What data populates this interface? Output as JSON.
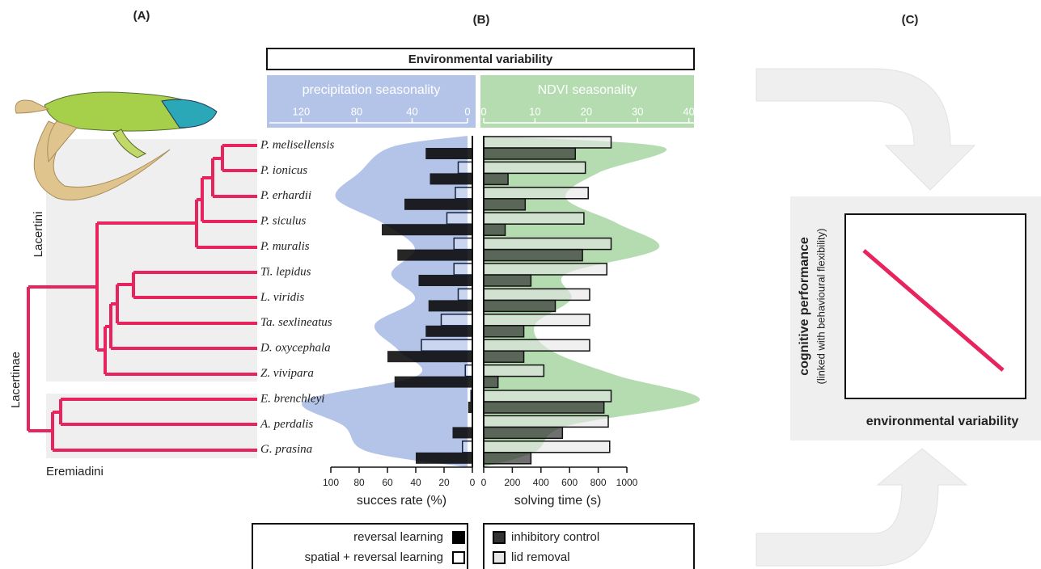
{
  "panel_labels": [
    "(A)",
    "(B)",
    "(C)"
  ],
  "header": "Environmental variability",
  "clades": [
    "Lacertini",
    "Lacertinae",
    "Eremiadini"
  ],
  "chart_data": [
    {
      "type": "bar",
      "categories": [
        "P. melisellensis",
        "P. ionicus",
        "P. erhardii",
        "P. siculus",
        "P. muralis",
        "Ti. lepidus",
        "L. viridis",
        "Ta. sexlineatus",
        "D. oxycephala",
        "Z. vivipara",
        "E. brenchleyi",
        "A. perdalis",
        "G. prasina"
      ],
      "xlabel": "succes rate (%)",
      "xlim": [
        100,
        0
      ],
      "xticks": [
        100,
        80,
        60,
        40,
        20,
        0
      ],
      "series": [
        {
          "name": "reversal learning",
          "color": "#000000",
          "values": [
            33,
            30,
            48,
            64,
            53,
            38,
            31,
            33,
            60,
            55,
            3,
            14,
            40
          ]
        },
        {
          "name": "spatial + reversal learning",
          "color": "#ffffff",
          "values": [
            null,
            10,
            12,
            18,
            13,
            13,
            10,
            22,
            36,
            5,
            1,
            null,
            7
          ]
        }
      ],
      "environment": {
        "name": "precipitation seasonality",
        "color": "#b3c4e8",
        "xlim": [
          143,
          0
        ],
        "xticks": [
          120,
          80,
          40,
          0
        ],
        "values": [
          55,
          78,
          95,
          61,
          38,
          55,
          38,
          67,
          50,
          36,
          118,
          89,
          72
        ]
      }
    },
    {
      "type": "bar",
      "xlabel": "solving time (s)",
      "xlim": [
        0,
        1000
      ],
      "xticks": [
        0,
        200,
        400,
        600,
        800,
        1000
      ],
      "series": [
        {
          "name": "inhibitory control",
          "color": "#333333",
          "values": [
            640,
            170,
            290,
            150,
            690,
            330,
            500,
            280,
            280,
            100,
            840,
            550,
            330
          ]
        },
        {
          "name": "lid removal",
          "color": "#e6e6e6",
          "values": [
            890,
            710,
            730,
            700,
            890,
            860,
            740,
            740,
            740,
            420,
            890,
            870,
            880
          ]
        }
      ],
      "environment": {
        "name": "NDVI seasonality",
        "color": "#b5dcb0",
        "xlim": [
          0,
          41
        ],
        "xticks": [
          0,
          10,
          20,
          30,
          40
        ],
        "values": [
          35,
          22.5,
          16,
          26,
          34,
          16,
          17,
          10,
          13,
          26,
          42,
          16,
          10
        ]
      }
    }
  ],
  "panel_c": {
    "ylabel": "cognitive performance",
    "ylabel_note": "(linked with behavioural flexibility)",
    "xlabel": "environmental variability"
  }
}
